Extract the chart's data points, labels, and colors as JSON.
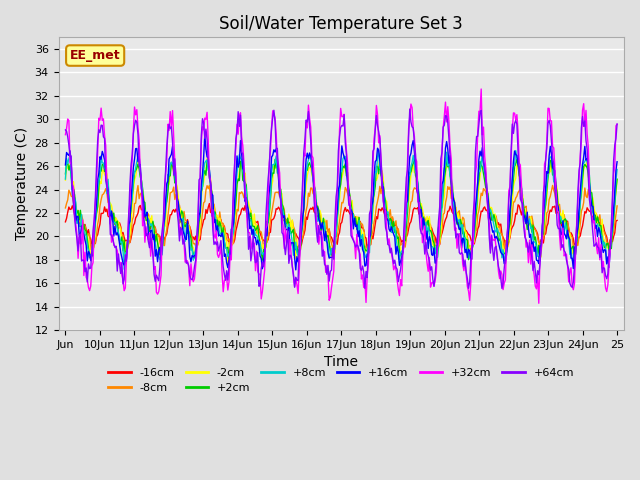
{
  "title": "Soil/Water Temperature Set 3",
  "xlabel": "Time",
  "ylabel": "Temperature (C)",
  "ylim": [
    12,
    37
  ],
  "yticks": [
    12,
    14,
    16,
    18,
    20,
    22,
    24,
    26,
    28,
    30,
    32,
    34,
    36
  ],
  "x_tick_positions": [
    0,
    1,
    2,
    3,
    4,
    5,
    6,
    7,
    8,
    9,
    10,
    11,
    12,
    13,
    14,
    15,
    16
  ],
  "x_labels": [
    "Jun",
    "10Jun",
    "11Jun",
    "12Jun",
    "13Jun",
    "14Jun",
    "15Jun",
    "16Jun",
    "17Jun",
    "18Jun",
    "19Jun",
    "20Jun",
    "21Jun",
    "22Jun",
    "23Jun",
    "24Jun",
    "25"
  ],
  "series_colors": [
    "#ff0000",
    "#ff8800",
    "#ffff00",
    "#00cc00",
    "#00cccc",
    "#0000ff",
    "#ff00ff",
    "#8800ff"
  ],
  "series_labels": [
    "-16cm",
    "-8cm",
    "-2cm",
    "+2cm",
    "+8cm",
    "+16cm",
    "+32cm",
    "+64cm"
  ],
  "background_color": "#e0e0e0",
  "plot_bg_color": "#e8e8e8",
  "watermark_text": "EE_met",
  "watermark_bg": "#ffff99",
  "watermark_border": "#cc8800",
  "watermark_text_color": "#990000",
  "grid_color": "#ffffff",
  "n_points": 480,
  "xlim": [
    -0.2,
    16.2
  ]
}
